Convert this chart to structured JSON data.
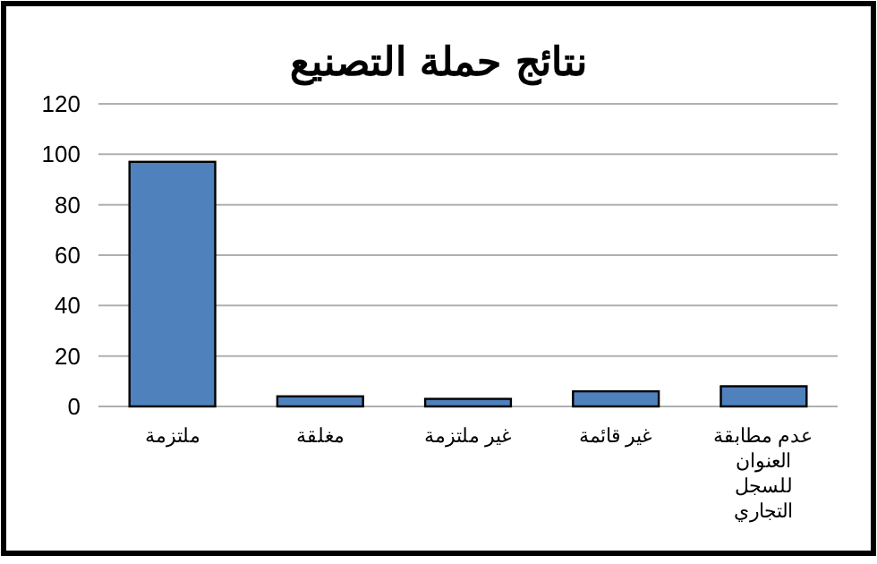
{
  "chart_data": {
    "type": "bar",
    "title": "نتائج حملة التصنيع",
    "categories": [
      "ملتزمة",
      "مغلقة",
      "غير ملتزمة",
      "غير قائمة",
      "عدم مطابقة العنوان للسجل التجاري"
    ],
    "values": [
      97,
      4,
      3,
      6,
      8
    ],
    "color": "#4f81bd",
    "ylim": [
      0,
      120
    ],
    "yticks": [
      0,
      20,
      40,
      60,
      80,
      100,
      120
    ],
    "grid": "y"
  }
}
